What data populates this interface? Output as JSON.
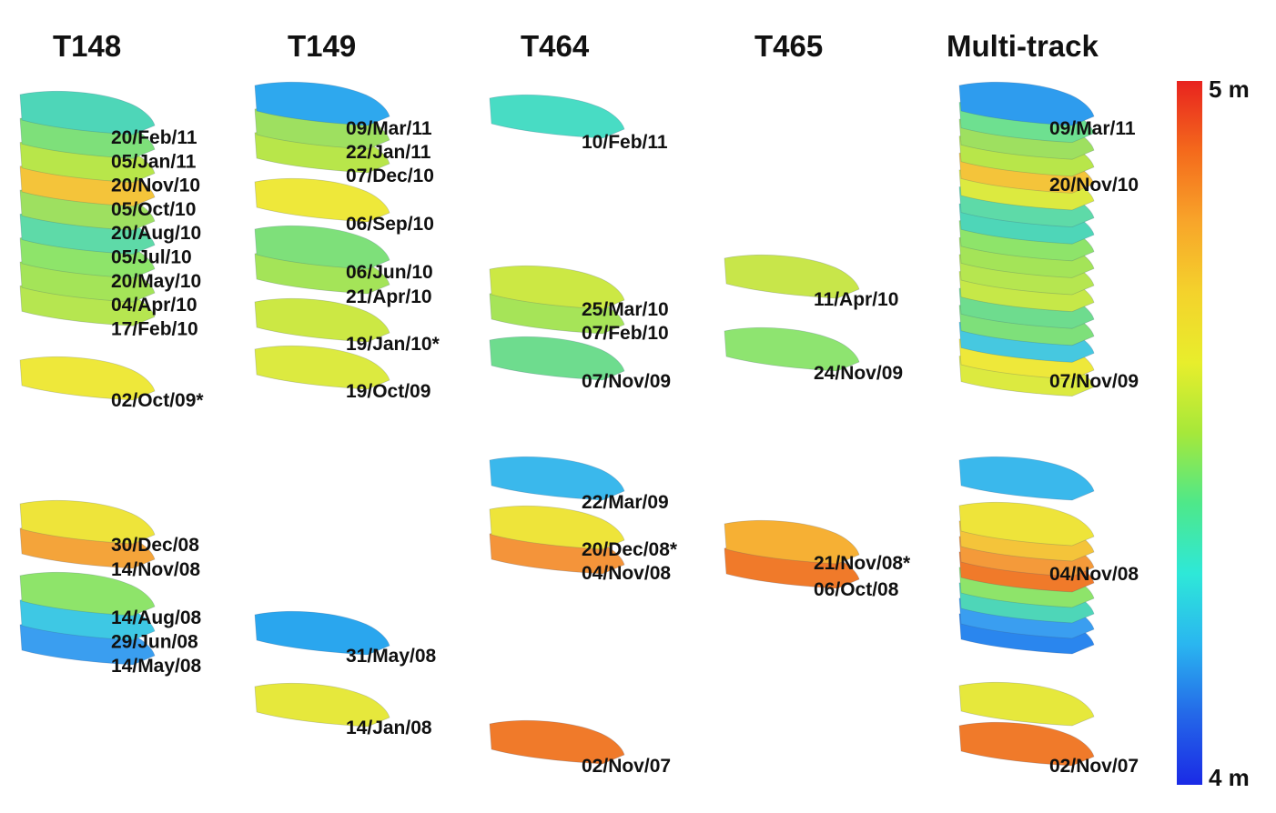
{
  "colorbar": {
    "max_label": "5 m",
    "min_label": "4 m",
    "stops": [
      "#e8231f",
      "#f46a1c",
      "#f8a52a",
      "#f4d22c",
      "#e8ee2c",
      "#a6e83a",
      "#4ee88a",
      "#2ee8d8",
      "#2ab6f0",
      "#2468e8",
      "#1a2ae6"
    ]
  },
  "tracks": [
    {
      "title": "T148",
      "groups": [
        {
          "layers": [
            "#4ed6b8",
            "#7ee07a",
            "#b8e64a",
            "#f4c43a",
            "#9ee060",
            "#5edaa8",
            "#8ee46a",
            "#a4e458",
            "#b6e650"
          ],
          "labels": [
            "20/Feb/11",
            "05/Jan/11",
            "20/Nov/10",
            "05/Oct/10",
            "20/Aug/10",
            "05/Jul/10",
            "20/May/10",
            "04/Apr/10",
            "17/Feb/10"
          ]
        },
        {
          "layers": [
            "#eee83a"
          ],
          "labels": [
            "02/Oct/09*"
          ]
        },
        {
          "layers": [
            "#eee43a",
            "#f4a43a"
          ],
          "labels": [
            "30/Dec/08",
            "14/Nov/08"
          ]
        },
        {
          "layers": [
            "#8ee46a",
            "#3ec8e4",
            "#3a9ef0"
          ],
          "labels": [
            "14/Aug/08",
            "29/Jun/08",
            "14/May/08"
          ]
        }
      ]
    },
    {
      "title": "T149",
      "groups": [
        {
          "layers": [
            "#2ea8ee",
            "#9ee060",
            "#b8e64a"
          ],
          "labels": [
            "09/Mar/11",
            "22/Jan/11",
            "07/Dec/10"
          ]
        },
        {
          "layers": [
            "#eee83a"
          ],
          "labels": [
            "06/Sep/10"
          ]
        },
        {
          "layers": [
            "#7ee07a",
            "#a4e458"
          ],
          "labels": [
            "06/Jun/10",
            "21/Apr/10"
          ]
        },
        {
          "layers": [
            "#cce844"
          ],
          "labels": [
            "19/Jan/10*"
          ]
        },
        {
          "layers": [
            "#dcea40"
          ],
          "labels": [
            "19/Oct/09"
          ]
        },
        {
          "layers": [
            "#2aa6ee"
          ],
          "labels": [
            "31/May/08"
          ]
        },
        {
          "layers": [
            "#e6e83c"
          ],
          "labels": [
            "14/Jan/08"
          ]
        }
      ]
    },
    {
      "title": "T464",
      "groups": [
        {
          "layers": [
            "#48dcc4"
          ],
          "labels": [
            "10/Feb/11"
          ]
        },
        {
          "layers": [
            "#cce844",
            "#a6e458"
          ],
          "labels": [
            "25/Mar/10",
            "07/Feb/10"
          ]
        },
        {
          "layers": [
            "#6edc8e"
          ],
          "labels": [
            "07/Nov/09"
          ]
        },
        {
          "layers": [
            "#3ab8ec"
          ],
          "labels": [
            "22/Mar/09"
          ]
        },
        {
          "layers": [
            "#eee43a",
            "#f4943a"
          ],
          "labels": [
            "20/Dec/08*",
            "04/Nov/08"
          ]
        },
        {
          "layers": [
            "#f07a2a"
          ],
          "labels": [
            "02/Nov/07"
          ]
        }
      ]
    },
    {
      "title": "T465",
      "groups": [
        {
          "layers": [
            "#c8e64a"
          ],
          "labels": [
            "11/Apr/10"
          ]
        },
        {
          "layers": [
            "#8ee470"
          ],
          "labels": [
            "24/Nov/09"
          ]
        },
        {
          "layers": [
            "#f6b034",
            "#f07a2a"
          ],
          "labels": [
            "21/Nov/08*",
            "06/Oct/08"
          ]
        }
      ]
    },
    {
      "title": "Multi-track",
      "groups": [
        {
          "layers": [
            "#2e9cee",
            "#6ee090",
            "#9ee060",
            "#b8e64a",
            "#f4c43a",
            "#dcea40",
            "#5edaa8",
            "#4ed6b8",
            "#8ee46a",
            "#a4e458",
            "#b6e650",
            "#c6e848",
            "#6edc8e",
            "#7ee07a",
            "#46c8e0",
            "#eee83a",
            "#dcea40"
          ],
          "labels": [
            "09/Mar/11",
            "20/Nov/10",
            "07/Nov/09"
          ]
        },
        {
          "layers": [
            "#3ab8ec"
          ],
          "labels": []
        },
        {
          "layers": [
            "#eee43a",
            "#f4c43a",
            "#f49a3a",
            "#f07a2a",
            "#8ee46a",
            "#4ed6b8",
            "#3a9ef0",
            "#2a86ee"
          ],
          "labels": [
            "04/Nov/08"
          ]
        },
        {
          "layers": [
            "#e6e83c",
            "#f07a2a"
          ],
          "labels": [
            "02/Nov/07"
          ]
        }
      ]
    }
  ]
}
